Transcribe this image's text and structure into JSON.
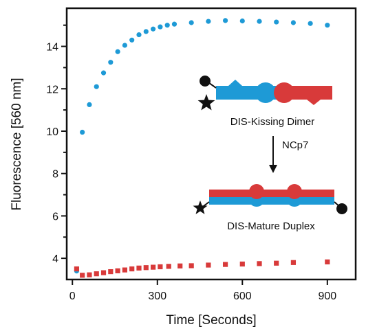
{
  "chart_data": {
    "type": "scatter",
    "title": "",
    "xlabel": "Time [Seconds]",
    "ylabel": "Fluorescence [560 nm]",
    "xlim": [
      -20,
      1000
    ],
    "ylim": [
      3.0,
      15.8
    ],
    "x_ticks": [
      0,
      300,
      600,
      900
    ],
    "y_ticks": [
      4,
      6,
      8,
      10,
      12,
      14
    ],
    "y_minor_ticks": [
      5,
      7,
      9,
      11,
      13,
      15
    ],
    "grid": false,
    "legend": "none",
    "series": [
      {
        "marker": "circle",
        "color": "#1e9ad6",
        "x": [
          15,
          35,
          60,
          85,
          110,
          135,
          160,
          185,
          210,
          235,
          260,
          285,
          310,
          335,
          360,
          420,
          480,
          540,
          600,
          660,
          720,
          780,
          840,
          900
        ],
        "y": [
          3.4,
          9.95,
          11.25,
          12.1,
          12.75,
          13.25,
          13.75,
          14.05,
          14.3,
          14.55,
          14.7,
          14.82,
          14.92,
          15.0,
          15.05,
          15.12,
          15.18,
          15.22,
          15.2,
          15.18,
          15.15,
          15.12,
          15.08,
          15.0
        ]
      },
      {
        "marker": "square",
        "color": "#d83a3a",
        "x": [
          15,
          35,
          60,
          85,
          110,
          135,
          160,
          185,
          210,
          235,
          260,
          285,
          310,
          340,
          380,
          420,
          480,
          540,
          600,
          660,
          720,
          780,
          900
        ],
        "y": [
          3.5,
          3.2,
          3.22,
          3.27,
          3.32,
          3.37,
          3.41,
          3.45,
          3.5,
          3.54,
          3.56,
          3.58,
          3.6,
          3.62,
          3.64,
          3.65,
          3.68,
          3.71,
          3.73,
          3.75,
          3.77,
          3.8,
          3.83
        ]
      }
    ],
    "annotations": {
      "top_label": "DIS-Kissing Dimer",
      "arrow_label": "NCp7",
      "bottom_label": "DIS-Mature Duplex"
    }
  },
  "colors": {
    "blue": "#1e9ad6",
    "red": "#d83a3a",
    "black": "#111111"
  }
}
